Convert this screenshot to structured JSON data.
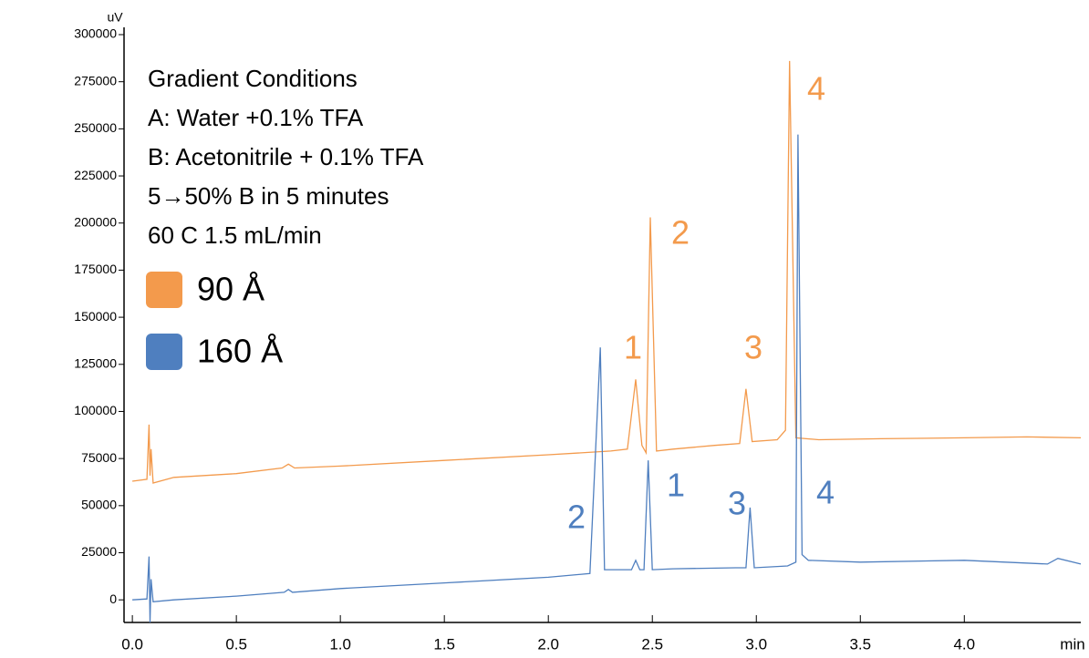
{
  "chart_data": {
    "type": "line",
    "y_label": "uV",
    "x_label": "min",
    "xlim": [
      -0.04,
      4.56
    ],
    "ylim": [
      -12000,
      300000
    ],
    "yticks": [
      0,
      25000,
      50000,
      75000,
      100000,
      125000,
      150000,
      175000,
      200000,
      225000,
      250000,
      275000,
      300000
    ],
    "xticks": [
      {
        "value": 0,
        "label": "0.0"
      },
      {
        "value": 0.5,
        "label": "0.5"
      },
      {
        "value": 1,
        "label": "1.0"
      },
      {
        "value": 1.5,
        "label": "1.5"
      },
      {
        "value": 2,
        "label": "2.0"
      },
      {
        "value": 2.5,
        "label": "2.5"
      },
      {
        "value": 3,
        "label": "3.0"
      },
      {
        "value": 3.5,
        "label": "3.5"
      },
      {
        "value": 4,
        "label": "4.0"
      }
    ],
    "notes": [
      "Gradient Conditions",
      "A: Water +0.1% TFA",
      "B: Acetonitrile + 0.1% TFA",
      "5→50% B in 5 minutes",
      "60 C  1.5 mL/min"
    ],
    "series": [
      {
        "name": "90 Å",
        "color": "#f39a4c",
        "x": [
          0.0,
          0.07,
          0.08,
          0.085,
          0.09,
          0.1,
          0.2,
          0.5,
          0.72,
          0.75,
          0.78,
          1.0,
          1.5,
          2.0,
          2.3,
          2.38,
          2.42,
          2.45,
          2.47,
          2.49,
          2.52,
          2.6,
          2.8,
          2.92,
          2.95,
          2.98,
          3.1,
          3.14,
          3.16,
          3.19,
          3.3,
          3.6,
          4.0,
          4.3,
          4.56
        ],
        "values": [
          63000,
          64000,
          93000,
          66000,
          80000,
          62000,
          65000,
          67000,
          70000,
          72000,
          70000,
          71000,
          74000,
          77000,
          79000,
          80000,
          117000,
          82000,
          78000,
          203000,
          79000,
          80000,
          82000,
          83000,
          112000,
          84000,
          85000,
          90000,
          286000,
          86000,
          85000,
          85500,
          86000,
          86500,
          86000
        ]
      },
      {
        "name": "160 Å",
        "color": "#4f7fbf",
        "x": [
          0.0,
          0.07,
          0.08,
          0.085,
          0.09,
          0.1,
          0.2,
          0.5,
          0.73,
          0.75,
          0.77,
          1.0,
          1.5,
          2.0,
          2.2,
          2.25,
          2.27,
          2.4,
          2.42,
          2.44,
          2.46,
          2.48,
          2.5,
          2.6,
          2.9,
          2.95,
          2.97,
          2.99,
          3.15,
          3.19,
          3.2,
          3.22,
          3.25,
          3.5,
          4.0,
          4.4,
          4.45,
          4.56
        ],
        "values": [
          0,
          500,
          23000,
          -12000,
          11000,
          -1000,
          0,
          2000,
          4000,
          5500,
          4000,
          6000,
          9000,
          12000,
          14000,
          134000,
          16000,
          16000,
          21000,
          16000,
          16000,
          74000,
          16000,
          16500,
          17000,
          17000,
          49000,
          17000,
          18000,
          20000,
          247000,
          24000,
          21000,
          20000,
          21000,
          19000,
          22000,
          19000
        ]
      }
    ],
    "annotations": [
      {
        "text": "1",
        "color": "#f39a4c"
      },
      {
        "text": "2",
        "color": "#f39a4c"
      },
      {
        "text": "3",
        "color": "#f39a4c"
      },
      {
        "text": "4",
        "color": "#f39a4c"
      },
      {
        "text": "2",
        "color": "#4f7fbf"
      },
      {
        "text": "1",
        "color": "#4f7fbf"
      },
      {
        "text": "3",
        "color": "#4f7fbf"
      },
      {
        "text": "4",
        "color": "#4f7fbf"
      }
    ]
  }
}
